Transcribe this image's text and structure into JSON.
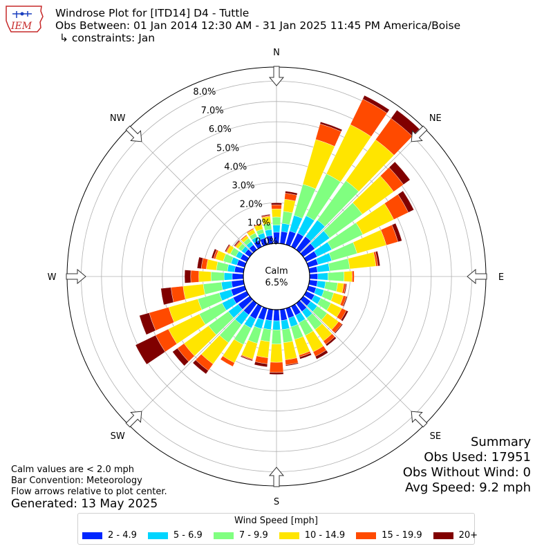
{
  "header": {
    "title": "Windrose Plot for [ITD14] D4 - Tuttle",
    "subtitle": "Obs Between: 01 Jan 2014 12:30 AM - 31 Jan 2025 11:45 PM America/Boise",
    "constraints": "↳ constraints: Jan",
    "logo_text": "IEM"
  },
  "summary": {
    "heading": "Summary",
    "obs_used": "Obs Used: 17951",
    "obs_without_wind": "Obs Without Wind: 0",
    "avg_speed": "Avg Speed: 9.2 mph"
  },
  "notes": {
    "calm_note": "Calm values are < 2.0 mph",
    "bar_convention": "Bar Convention: Meteorology",
    "flow_arrows": "Flow arrows relative to plot center.",
    "generated": "Generated: 13 May 2025"
  },
  "chart_data": {
    "type": "windrose",
    "calm_label": "Calm",
    "calm_value": "6.5%",
    "calm_percent": 6.5,
    "radial_max": 8.7,
    "radial_ticks": [
      0,
      1,
      2,
      3,
      4,
      5,
      6,
      7,
      8
    ],
    "radial_tick_labels": [
      "0.0%",
      "1.0%",
      "2.0%",
      "3.0%",
      "4.0%",
      "5.0%",
      "6.0%",
      "7.0%",
      "8.0%"
    ],
    "directions": [
      "N",
      "NE",
      "E",
      "SE",
      "S",
      "SW",
      "W",
      "NW"
    ],
    "legend_title": "Wind Speed [mph]",
    "bins": [
      "2 - 4.9",
      "5 - 6.9",
      "7 - 9.9",
      "10 - 14.9",
      "15 - 19.9",
      "20+"
    ],
    "colors": [
      "#0026ff",
      "#00d5ff",
      "#80ff80",
      "#ffe500",
      "#ff4a00",
      "#800000"
    ],
    "sector_width_deg": 10,
    "sector_centers_deg": [
      0,
      10,
      20,
      30,
      40,
      50,
      60,
      70,
      80,
      90,
      100,
      110,
      120,
      130,
      140,
      150,
      160,
      170,
      180,
      190,
      200,
      210,
      220,
      230,
      240,
      250,
      260,
      270,
      280,
      290,
      300,
      310,
      320,
      330,
      340,
      350
    ],
    "cumulative_percent": [
      [
        0.55,
        0.9,
        1.3,
        1.7,
        1.9,
        2.0
      ],
      [
        0.6,
        1.0,
        1.6,
        2.2,
        2.5,
        2.6
      ],
      [
        0.7,
        1.5,
        3.1,
        5.4,
        6.2,
        6.3
      ],
      [
        0.75,
        1.7,
        4.0,
        6.7,
        8.1,
        8.3
      ],
      [
        0.8,
        1.8,
        4.2,
        6.7,
        8.0,
        8.5
      ],
      [
        0.7,
        1.6,
        3.6,
        5.5,
        6.1,
        6.5
      ],
      [
        0.6,
        1.4,
        3.1,
        4.8,
        5.6,
        5.9
      ],
      [
        0.5,
        1.2,
        2.5,
        4.0,
        4.6,
        4.8
      ],
      [
        0.4,
        1.0,
        2.0,
        3.3,
        3.4,
        3.5
      ],
      [
        0.4,
        0.9,
        1.7,
        2.1,
        2.2,
        2.2
      ],
      [
        0.4,
        0.8,
        1.4,
        1.7,
        1.8,
        1.85
      ],
      [
        0.4,
        0.8,
        1.3,
        1.8,
        1.95,
        2.0
      ],
      [
        0.45,
        0.8,
        1.35,
        1.95,
        2.2,
        2.3
      ],
      [
        0.45,
        0.85,
        1.45,
        2.15,
        2.35,
        2.4
      ],
      [
        0.5,
        0.9,
        1.6,
        2.3,
        2.5,
        2.6
      ],
      [
        0.5,
        0.9,
        1.6,
        2.5,
        2.75,
        2.9
      ],
      [
        0.5,
        0.95,
        1.6,
        2.4,
        2.5,
        2.6
      ],
      [
        0.55,
        1.0,
        1.65,
        2.5,
        2.75,
        2.8
      ],
      [
        0.55,
        1.0,
        1.7,
        2.6,
        3.1,
        3.2
      ],
      [
        0.55,
        1.0,
        1.6,
        2.4,
        2.7,
        2.85
      ],
      [
        0.6,
        1.05,
        1.8,
        2.6,
        2.65,
        2.7
      ],
      [
        0.7,
        1.2,
        2.1,
        3.1,
        3.3,
        3.3
      ],
      [
        0.7,
        1.3,
        2.4,
        3.7,
        4.1,
        4.3
      ],
      [
        0.7,
        1.3,
        2.5,
        4.0,
        4.4,
        4.7
      ],
      [
        0.75,
        1.35,
        2.6,
        4.3,
        5.0,
        6.1
      ],
      [
        0.7,
        1.3,
        2.4,
        3.9,
        4.9,
        5.4
      ],
      [
        0.6,
        1.1,
        2.0,
        3.0,
        3.6,
        4.1
      ],
      [
        0.55,
        0.95,
        1.6,
        2.2,
        2.6,
        2.9
      ],
      [
        0.45,
        0.8,
        1.35,
        1.85,
        2.1,
        2.3
      ],
      [
        0.4,
        0.7,
        1.1,
        1.5,
        1.6,
        1.7
      ],
      [
        0.35,
        0.6,
        0.9,
        1.1,
        1.15,
        1.2
      ],
      [
        0.3,
        0.5,
        0.7,
        0.85,
        0.9,
        0.95
      ],
      [
        0.3,
        0.5,
        0.7,
        0.85,
        0.9,
        0.9
      ],
      [
        0.35,
        0.55,
        0.75,
        0.95,
        1.0,
        1.0
      ],
      [
        0.35,
        0.6,
        0.8,
        1.05,
        1.1,
        1.1
      ],
      [
        0.4,
        0.7,
        1.0,
        1.35,
        1.4,
        1.45
      ]
    ]
  }
}
